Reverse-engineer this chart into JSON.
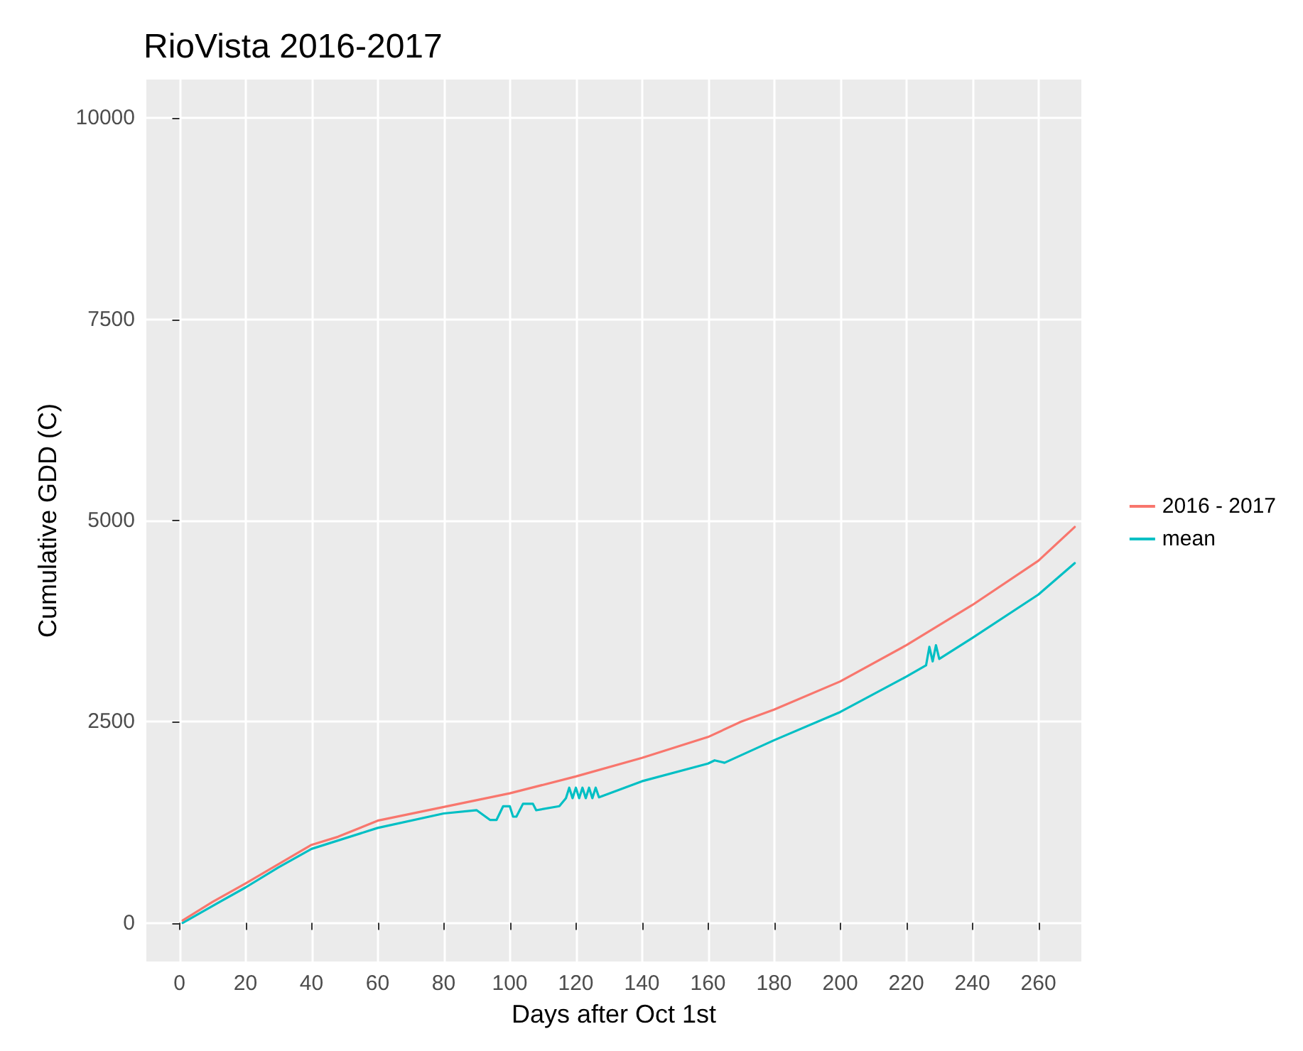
{
  "chart_data": {
    "type": "line",
    "title": "RioVista 2016-2017",
    "xlabel": "Days after Oct 1st",
    "ylabel": "Cumulative GDD (C)",
    "xlim": [
      -10,
      273
    ],
    "xticks": [
      0,
      20,
      40,
      60,
      80,
      100,
      120,
      140,
      160,
      180,
      200,
      220,
      240,
      260
    ],
    "ylim": [
      -480,
      10480
    ],
    "yticks": [
      0,
      2500,
      5000,
      7500,
      10000
    ],
    "grid": true,
    "legend": "right",
    "line_style": "solid",
    "marker": "none",
    "series": [
      {
        "name": "2016 - 2017",
        "color": "#f8766d",
        "x": [
          1,
          10,
          20,
          30,
          40,
          48,
          60,
          80,
          100,
          120,
          140,
          160,
          170,
          180,
          200,
          220,
          240,
          260,
          271
        ],
        "values": [
          30,
          260,
          490,
          730,
          970,
          1070,
          1270,
          1440,
          1610,
          1820,
          2050,
          2310,
          2500,
          2650,
          3000,
          3450,
          3950,
          4500,
          4920
        ]
      },
      {
        "name": "mean",
        "color": "#00bfc4",
        "x": [
          1,
          10,
          20,
          30,
          40,
          60,
          80,
          90,
          94,
          96,
          98,
          100,
          101,
          102,
          104,
          107,
          108,
          115,
          117,
          118,
          119,
          120,
          121,
          122,
          123,
          124,
          125,
          126,
          127,
          140,
          160,
          162,
          165,
          180,
          200,
          220,
          226,
          227,
          228,
          229,
          230,
          240,
          260,
          271
        ],
        "values": [
          0,
          210,
          440,
          690,
          920,
          1180,
          1360,
          1400,
          1280,
          1280,
          1450,
          1450,
          1320,
          1320,
          1480,
          1480,
          1400,
          1450,
          1550,
          1680,
          1550,
          1680,
          1550,
          1680,
          1550,
          1680,
          1550,
          1680,
          1560,
          1760,
          1980,
          2020,
          1990,
          2270,
          2620,
          3060,
          3200,
          3430,
          3250,
          3450,
          3280,
          3540,
          4080,
          4470
        ]
      }
    ]
  }
}
